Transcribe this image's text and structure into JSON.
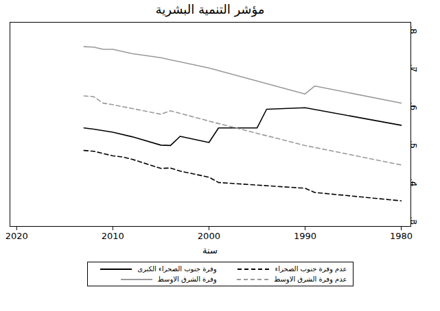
{
  "chart_data": {
    "type": "line",
    "title": "مؤشر التنمية البشرية",
    "x_label": "سنة",
    "xlim": [
      2020.7,
      1979
    ],
    "xticks": [
      2020,
      2010,
      2000,
      1990,
      1980
    ],
    "ylim": [
      0.285,
      0.82
    ],
    "yticks": [
      {
        "value": 0.3,
        "label": ".3"
      },
      {
        "value": 0.4,
        "label": ".4"
      },
      {
        "value": 0.5,
        "label": ".5"
      },
      {
        "value": 0.6,
        "label": ".6"
      },
      {
        "value": 0.7,
        "label": ".7"
      },
      {
        "value": 0.8,
        "label": ".8"
      }
    ],
    "grid": false,
    "legend": "bottom",
    "series": [
      {
        "name": "وفرة جنوب الصحراء الكبرى",
        "color": "#000000",
        "line_style": "solid",
        "x": [
          2013,
          2012,
          2010,
          2008,
          2005,
          2004,
          2003,
          2000,
          1999,
          1995,
          1994,
          1990,
          1980
        ],
        "values": [
          0.543,
          0.54,
          0.532,
          0.52,
          0.498,
          0.497,
          0.521,
          0.505,
          0.543,
          0.543,
          0.592,
          0.596,
          0.55
        ]
      },
      {
        "name": "عدم وفرة جنوب الصحراء",
        "color": "#000000",
        "line_style": "dashed",
        "x": [
          2013,
          2012,
          2011,
          2010,
          2009,
          2008,
          2005,
          2004,
          2003,
          2000,
          1999,
          1990,
          1989,
          1980
        ],
        "values": [
          0.484,
          0.482,
          0.476,
          0.47,
          0.467,
          0.461,
          0.437,
          0.438,
          0.43,
          0.414,
          0.4,
          0.385,
          0.374,
          0.352
        ]
      },
      {
        "name": "وفرة الشرق الاوسط",
        "color": "#999999",
        "line_style": "solid",
        "x": [
          2013,
          2012,
          2011,
          2010,
          2008,
          2005,
          2000,
          1990,
          1989,
          1980
        ],
        "values": [
          0.756,
          0.755,
          0.749,
          0.749,
          0.738,
          0.727,
          0.7,
          0.632,
          0.653,
          0.608
        ]
      },
      {
        "name": "عدم وفرة الشرق الاوسط",
        "color": "#999999",
        "line_style": "dashed",
        "x": [
          2013,
          2012,
          2011,
          2010,
          2005,
          2004,
          2000,
          1990,
          1980
        ],
        "values": [
          0.627,
          0.625,
          0.608,
          0.604,
          0.579,
          0.588,
          0.561,
          0.497,
          0.446
        ]
      }
    ]
  }
}
